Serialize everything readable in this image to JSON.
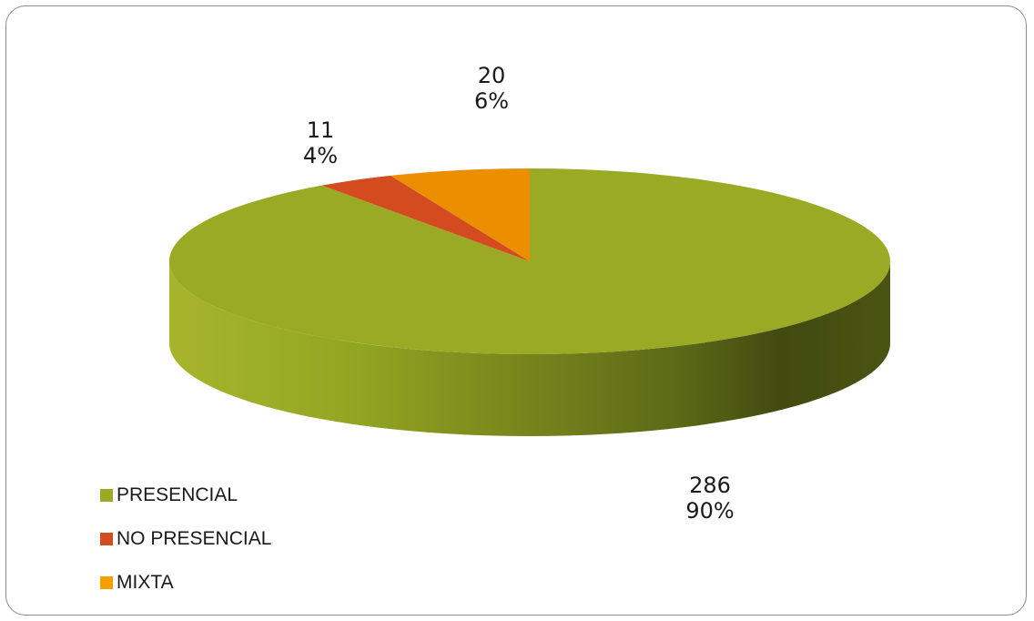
{
  "chart_data": {
    "type": "pie",
    "style": "3d",
    "title": "",
    "categories": [
      "PRESENCIAL",
      "NO PRESENCIAL",
      "MIXTA"
    ],
    "values": [
      286,
      11,
      20
    ],
    "percent_labels": [
      "90%",
      "4%",
      "6%"
    ],
    "colors": [
      "#9AAA24",
      "#D44B1F",
      "#EB8E00"
    ],
    "legend_position": "bottom-left"
  },
  "labels": [
    {
      "count": "286",
      "pct": "90%"
    },
    {
      "count": "11",
      "pct": "4%"
    },
    {
      "count": "20",
      "pct": "6%"
    }
  ],
  "legend": [
    {
      "label": "PRESENCIAL",
      "color": "#9AAA24"
    },
    {
      "label": "NO PRESENCIAL",
      "color": "#D44B1F"
    },
    {
      "label": "MIXTA",
      "color": "#F5A000"
    }
  ]
}
